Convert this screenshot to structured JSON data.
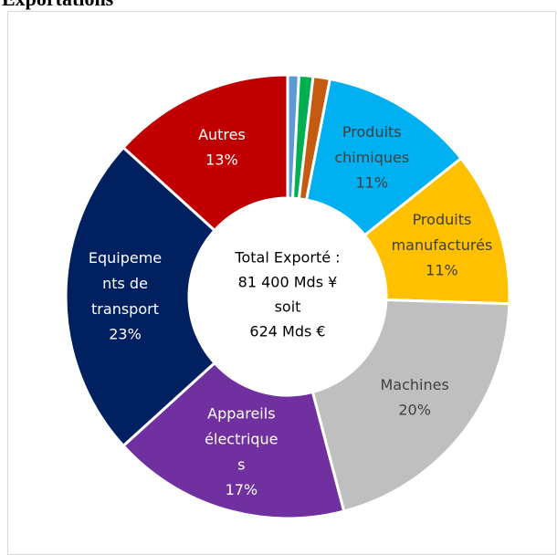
{
  "chart_data": {
    "type": "donut",
    "title": "Exportations",
    "categories": [
      null,
      null,
      null,
      "Produits\nchimiques",
      "Produits\nmanufacturés",
      "Machines",
      "Appareils\nélectrique\ns",
      "Equipeme\nnts de\ntransport",
      "Autres"
    ],
    "values": [
      0.8,
      1,
      1.2,
      11,
      11,
      20,
      17,
      23,
      13
    ],
    "value_labels": [
      null,
      null,
      null,
      "11%",
      "11%",
      "20%",
      "17%",
      "23%",
      "13%"
    ],
    "colors": [
      "#5b9bd5",
      "#00b050",
      "#c55a11",
      "#00b0f0",
      "#ffc000",
      "#bfbfbf",
      "#7030a0",
      "#002060",
      "#c00000"
    ],
    "center_text": "Total Exporté :\n81 400 Mds ¥\nsoit\n624 Mds €"
  }
}
